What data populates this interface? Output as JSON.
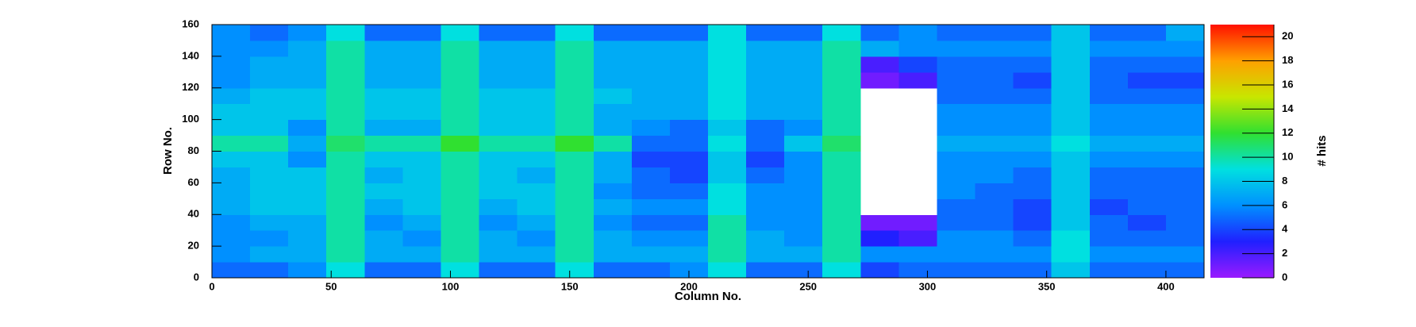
{
  "chart_data": {
    "type": "heatmap",
    "xlabel": "Column No.",
    "ylabel": "Row No.",
    "colorbar_label": "# hits",
    "xbins": [
      0,
      16,
      32,
      48,
      64,
      80,
      96,
      112,
      128,
      144,
      160,
      176,
      192,
      208,
      224,
      240,
      256,
      272,
      288,
      304,
      320,
      336,
      352,
      368,
      384,
      400,
      416
    ],
    "ybins": [
      0,
      10,
      20,
      30,
      40,
      50,
      60,
      70,
      80,
      90,
      100,
      110,
      120,
      130,
      140,
      150,
      160
    ],
    "z": [
      [
        5,
        5,
        6,
        9,
        5,
        5,
        9,
        5,
        5,
        9,
        5,
        5,
        6,
        9,
        5,
        5,
        9,
        4,
        5,
        5,
        5,
        5,
        8,
        5,
        5,
        5
      ],
      [
        6,
        7,
        7,
        10,
        7,
        7,
        10,
        7,
        7,
        10,
        7,
        7,
        7,
        10,
        7,
        7,
        10,
        6,
        6,
        6,
        6,
        6,
        9,
        6,
        6,
        6
      ],
      [
        6,
        6,
        7,
        10,
        7,
        6,
        10,
        7,
        6,
        10,
        7,
        6,
        6,
        10,
        7,
        6,
        10,
        3,
        2,
        6,
        6,
        5,
        9,
        5,
        5,
        5
      ],
      [
        6,
        7,
        7,
        10,
        6,
        7,
        10,
        6,
        7,
        10,
        6,
        5,
        5,
        10,
        6,
        6,
        10,
        1,
        1,
        5,
        5,
        4,
        8,
        5,
        4,
        5
      ],
      [
        7,
        8,
        8,
        10,
        7,
        8,
        10,
        7,
        8,
        10,
        7,
        6,
        6,
        9,
        6,
        6,
        10,
        0,
        0,
        5,
        5,
        4,
        8,
        4,
        5,
        5
      ],
      [
        7,
        8,
        8,
        10,
        8,
        8,
        10,
        8,
        8,
        10,
        6,
        5,
        5,
        9,
        6,
        6,
        10,
        0,
        0,
        6,
        5,
        5,
        8,
        5,
        5,
        5
      ],
      [
        7,
        8,
        8,
        10,
        7,
        8,
        10,
        8,
        7,
        10,
        7,
        5,
        4,
        8,
        5,
        6,
        10,
        0,
        0,
        6,
        6,
        5,
        8,
        5,
        5,
        5
      ],
      [
        8,
        8,
        6,
        10,
        8,
        8,
        10,
        8,
        8,
        10,
        7,
        4,
        4,
        8,
        4,
        6,
        10,
        0,
        0,
        6,
        6,
        6,
        8,
        6,
        6,
        6
      ],
      [
        10,
        10,
        7,
        11,
        10,
        10,
        12,
        10,
        10,
        12,
        10,
        5,
        5,
        9,
        5,
        8,
        11,
        0,
        0,
        7,
        7,
        7,
        9,
        7,
        7,
        7
      ],
      [
        8,
        8,
        6,
        10,
        7,
        7,
        10,
        8,
        8,
        10,
        7,
        6,
        5,
        8,
        5,
        6,
        10,
        0,
        0,
        6,
        6,
        6,
        8,
        6,
        6,
        6
      ],
      [
        8,
        8,
        8,
        10,
        8,
        8,
        10,
        8,
        8,
        10,
        7,
        7,
        7,
        9,
        7,
        7,
        10,
        0,
        0,
        6,
        6,
        6,
        8,
        6,
        6,
        6
      ],
      [
        7,
        8,
        8,
        10,
        8,
        8,
        10,
        8,
        8,
        10,
        8,
        7,
        7,
        9,
        7,
        7,
        10,
        0,
        0,
        5,
        5,
        5,
        8,
        5,
        5,
        5
      ],
      [
        6,
        7,
        7,
        10,
        7,
        7,
        10,
        7,
        7,
        10,
        7,
        7,
        7,
        9,
        7,
        7,
        10,
        1,
        2,
        5,
        5,
        4,
        8,
        5,
        4,
        4
      ],
      [
        6,
        7,
        7,
        10,
        7,
        7,
        10,
        7,
        7,
        10,
        7,
        7,
        7,
        9,
        7,
        7,
        10,
        2,
        4,
        5,
        5,
        5,
        8,
        5,
        5,
        5
      ],
      [
        6,
        6,
        7,
        10,
        7,
        7,
        10,
        7,
        7,
        10,
        7,
        7,
        7,
        9,
        7,
        7,
        10,
        7,
        6,
        6,
        6,
        6,
        8,
        6,
        6,
        6
      ],
      [
        6,
        5,
        6,
        9,
        5,
        5,
        9,
        5,
        5,
        9,
        5,
        5,
        5,
        9,
        5,
        5,
        9,
        5,
        6,
        5,
        5,
        5,
        8,
        5,
        5,
        7
      ]
    ],
    "xlim": [
      0,
      416
    ],
    "ylim": [
      0,
      160
    ],
    "zlim": [
      0,
      21
    ],
    "xticks": [
      0,
      50,
      100,
      150,
      200,
      250,
      300,
      350,
      400
    ],
    "yticks": [
      0,
      20,
      40,
      60,
      80,
      100,
      120,
      140,
      160
    ],
    "zticks": [
      0,
      2,
      4,
      6,
      8,
      10,
      12,
      14,
      16,
      18,
      20
    ],
    "colorscale": [
      "#9a1aff",
      "#2020ff",
      "#0090ff",
      "#00e0e0",
      "#30e030",
      "#c8e600",
      "#ffa000",
      "#ff1000"
    ],
    "empty_color": "#ffffff"
  }
}
